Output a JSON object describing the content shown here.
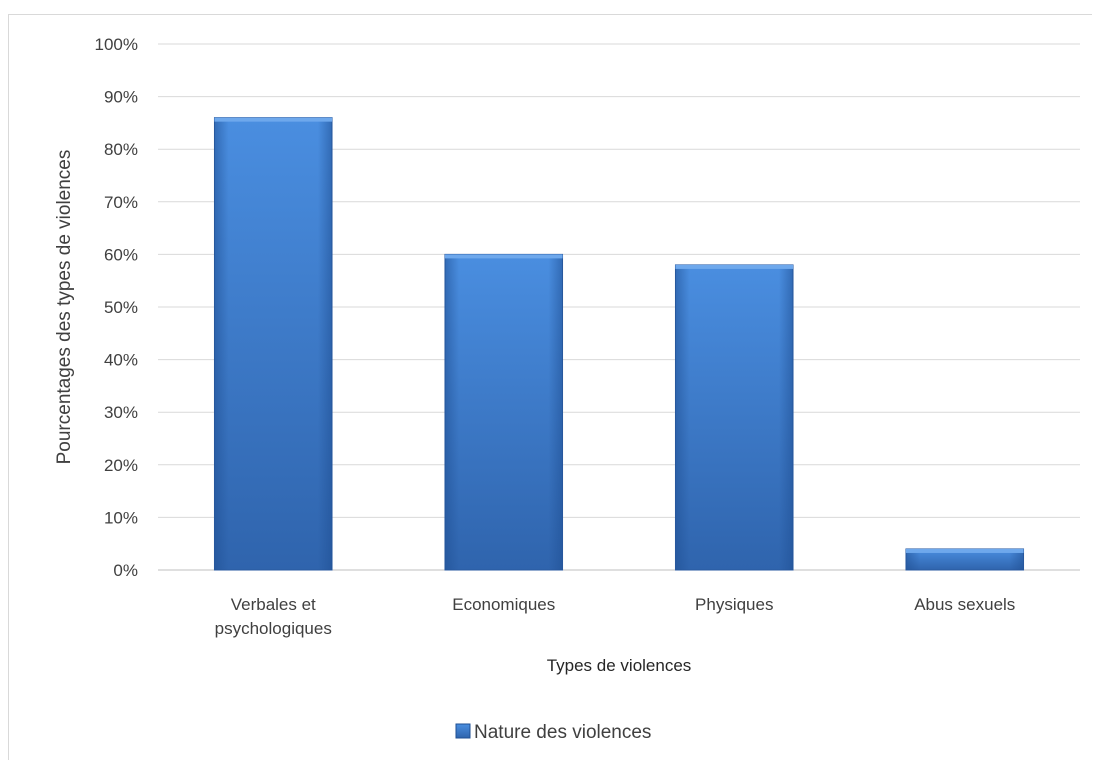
{
  "chart_data": {
    "type": "bar",
    "title": "",
    "categories": [
      [
        "Verbales et",
        "psychologiques"
      ],
      [
        "Economiques"
      ],
      [
        "Physiques"
      ],
      [
        "Abus sexuels"
      ]
    ],
    "series": [
      {
        "name": "Nature des violences",
        "values": [
          86,
          60,
          58,
          4
        ],
        "color": "#3a78c8"
      }
    ],
    "xlabel": "Types de violences",
    "ylabel": "Pourcentages des types de violences",
    "ylim": [
      0,
      100
    ],
    "yticks": [
      0,
      10,
      20,
      30,
      40,
      50,
      60,
      70,
      80,
      90,
      100
    ],
    "ytick_suffix": "%",
    "grid": true,
    "legend_position": "bottom"
  }
}
